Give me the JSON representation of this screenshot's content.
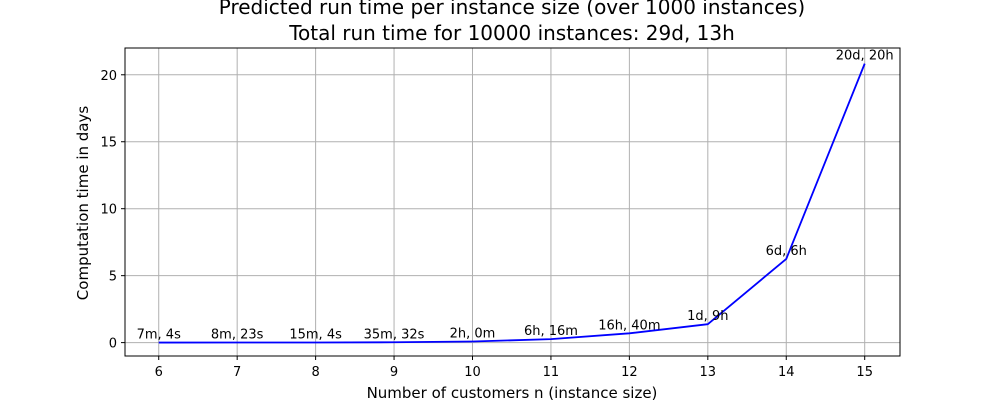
{
  "chart_data": {
    "type": "line",
    "title": "Predicted run time per instance size (over 1000 instances)",
    "subtitle": "Total run time for 10000 instances: 29d, 13h",
    "xlabel": "Number of customers n (instance size)",
    "ylabel": "Computation time in days",
    "xlim": [
      5.57,
      15.45
    ],
    "ylim": [
      -1.0,
      22.0
    ],
    "x_ticks": [
      6,
      7,
      8,
      9,
      10,
      11,
      12,
      13,
      14,
      15
    ],
    "y_ticks": [
      0,
      5,
      10,
      15,
      20
    ],
    "grid": true,
    "series_color": "#0000ff",
    "x": [
      6,
      7,
      8,
      9,
      10,
      11,
      12,
      13,
      14,
      15
    ],
    "values": [
      0.0049,
      0.0058,
      0.0105,
      0.0247,
      0.0833,
      0.2611,
      0.6944,
      1.375,
      6.25,
      20.833
    ],
    "labels": [
      "7m, 4s",
      "8m, 23s",
      "15m, 4s",
      "35m, 32s",
      "2h, 0m",
      "6h, 16m",
      "16h, 40m",
      "1d, 9h",
      "6d, 6h",
      "20d, 20h"
    ]
  }
}
